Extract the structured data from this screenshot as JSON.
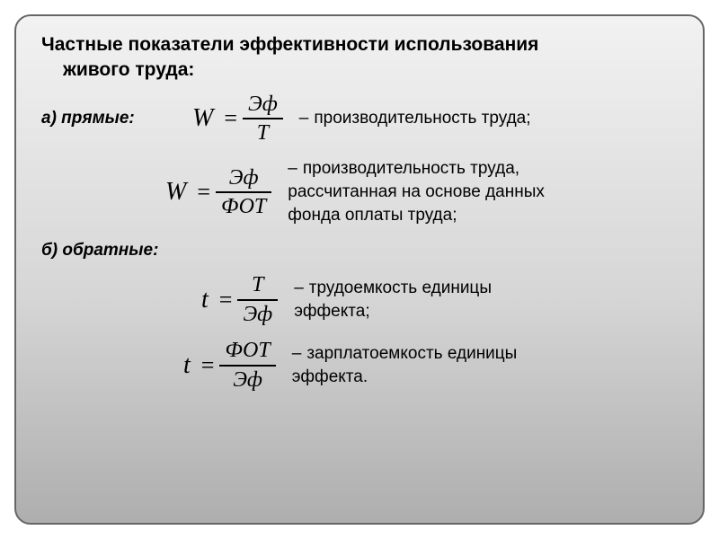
{
  "title_line1": "Частные показатели эффективности использования",
  "title_line2": "живого труда:",
  "section_a_label": "а) прямые:",
  "section_b_label": "б) обратные:",
  "font": {
    "title_size": 21,
    "body_size": 19,
    "formula_var_size": 28,
    "formula_frac_size": 24,
    "title_color": "#000000",
    "body_color": "#000000"
  },
  "background": {
    "gradient_top": "#f2f2f2",
    "gradient_mid": "#d6d6d6",
    "gradient_bottom": "#aeaeae",
    "border_color": "#666666",
    "border_radius": 18
  },
  "formulas": [
    {
      "lhs": "W",
      "num": "Эф",
      "den": "Т",
      "desc": "производительность труда;"
    },
    {
      "lhs": "W",
      "num": "Эф",
      "den": "ФОТ",
      "desc_l1": "производительность труда,",
      "desc_l2": "рассчитанная на основе данных",
      "desc_l3": "фонда оплаты труда;"
    },
    {
      "lhs": "t",
      "num": "Т",
      "den": "Эф",
      "desc_l1": "трудоемкость единицы",
      "desc_l2": "эффекта;"
    },
    {
      "lhs": "t",
      "num": "ФОТ",
      "den": "Эф",
      "desc_l1": "зарплатоемкость единицы",
      "desc_l2": "эффекта."
    }
  ],
  "dash": "–"
}
